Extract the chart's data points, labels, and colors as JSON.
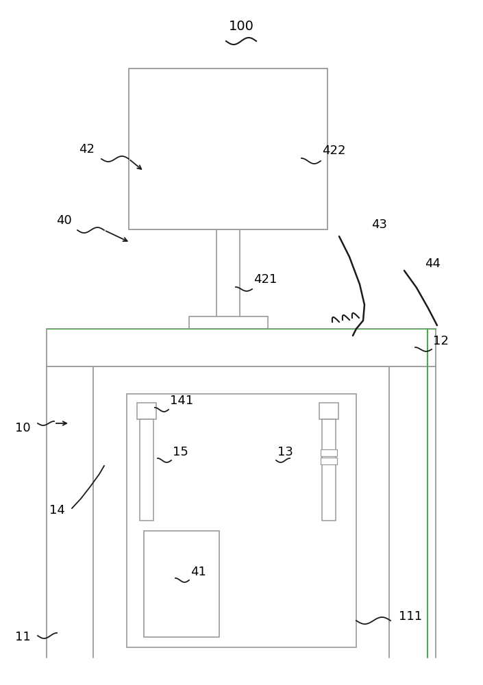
{
  "bg_color": "#ffffff",
  "line_color": "#999999",
  "dark_line": "#1a1a1a",
  "text_color": "#000000",
  "fig_width": 7.05,
  "fig_height": 10.0,
  "dpi": 100
}
